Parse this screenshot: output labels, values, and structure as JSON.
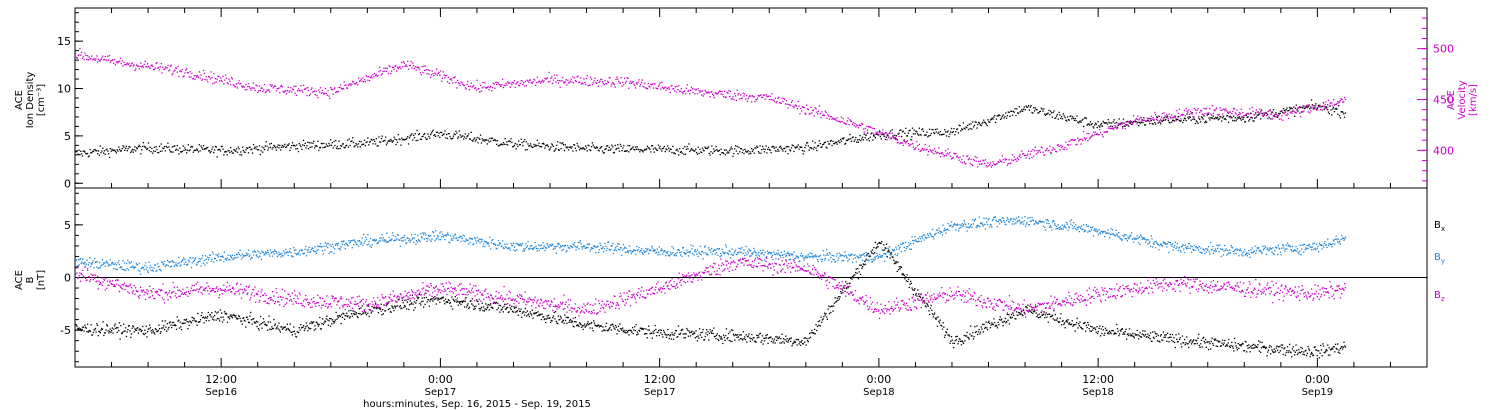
{
  "chart_data": [
    {
      "type": "scatter",
      "title": "",
      "x_axis": {
        "range": [
          "2015-09-16 04:00",
          "2015-09-19 06:00"
        ],
        "tick_labels": [
          {
            "time": "12:00",
            "day": "Sep16"
          },
          {
            "time": "0:00",
            "day": "Sep17"
          },
          {
            "time": "12:00",
            "day": "Sep17"
          },
          {
            "time": "0:00",
            "day": "Sep18"
          },
          {
            "time": "12:00",
            "day": "Sep18"
          },
          {
            "time": "0:00",
            "day": "Sep19"
          }
        ],
        "label": "hours:minutes, Sep. 16, 2015 - Sep. 19, 2015"
      },
      "ylabel_left": [
        "ACE",
        "Ion Density",
        "[cm⁻³]"
      ],
      "ylabel_right": [
        "ACE",
        "Velocity",
        "[km/s]"
      ],
      "yticks_left": [
        "0",
        "5",
        "10",
        "15"
      ],
      "yticks_right": [
        "400",
        "450",
        "500"
      ],
      "ylim_left": [
        -0.5,
        18.5
      ],
      "ylim_right": [
        363,
        540
      ],
      "grid": false,
      "series": [
        {
          "axis": "left",
          "color": "#000000",
          "x": [
            "2015-09-16 04:00",
            "2015-09-16 08:00",
            "2015-09-16 12:00",
            "2015-09-16 16:00",
            "2015-09-16 20:00",
            "2015-09-17 00:00",
            "2015-09-17 04:00",
            "2015-09-17 08:00",
            "2015-09-17 12:00",
            "2015-09-17 16:00",
            "2015-09-17 20:00",
            "2015-09-18 00:00",
            "2015-09-18 04:00",
            "2015-09-18 08:00",
            "2015-09-18 12:00",
            "2015-09-18 16:00",
            "2015-09-18 20:00",
            "2015-09-19 00:00",
            "2015-09-19 01:30"
          ],
          "y": [
            3.2,
            3.8,
            3.5,
            4.0,
            4.3,
            5.3,
            4.2,
            3.7,
            3.6,
            3.5,
            3.8,
            5.2,
            5.5,
            8.0,
            6.2,
            6.8,
            7.0,
            8.2,
            7.5
          ]
        },
        {
          "axis": "right",
          "color": "#cc00cc",
          "x": [
            "2015-09-16 04:00",
            "2015-09-16 06:00",
            "2015-09-16 10:00",
            "2015-09-16 14:00",
            "2015-09-16 18:00",
            "2015-09-16 22:00",
            "2015-09-17 02:00",
            "2015-09-17 06:00",
            "2015-09-17 10:00",
            "2015-09-17 14:00",
            "2015-09-17 18:00",
            "2015-09-17 22:00",
            "2015-09-18 02:00",
            "2015-09-18 06:00",
            "2015-09-18 10:00",
            "2015-09-18 14:00",
            "2015-09-18 18:00",
            "2015-09-18 22:00",
            "2015-09-19 01:30"
          ],
          "y": [
            495,
            488,
            478,
            462,
            458,
            485,
            462,
            470,
            468,
            458,
            452,
            430,
            405,
            386,
            405,
            430,
            440,
            435,
            450
          ]
        }
      ]
    },
    {
      "type": "scatter",
      "title": "",
      "x_axis": {
        "range": [
          "2015-09-16 04:00",
          "2015-09-19 06:00"
        ],
        "tick_labels": [
          {
            "time": "12:00",
            "day": "Sep16"
          },
          {
            "time": "0:00",
            "day": "Sep17"
          },
          {
            "time": "12:00",
            "day": "Sep17"
          },
          {
            "time": "0:00",
            "day": "Sep18"
          },
          {
            "time": "12:00",
            "day": "Sep18"
          },
          {
            "time": "0:00",
            "day": "Sep19"
          }
        ],
        "label": "hours:minutes, Sep. 16, 2015 - Sep. 19, 2015"
      },
      "ylabel_left": [
        "ACE",
        "B",
        "[nT]"
      ],
      "yticks_left": [
        "-5",
        "0",
        "5"
      ],
      "ylim": [
        -8.5,
        8.5
      ],
      "zero_line": 0,
      "grid": false,
      "legend_placement": "right",
      "series": [
        {
          "name": "Bx",
          "legend_main": "B",
          "legend_sub": "x",
          "color": "#000000",
          "x": [
            "2015-09-16 04:00",
            "2015-09-16 08:00",
            "2015-09-16 12:00",
            "2015-09-16 16:00",
            "2015-09-16 20:00",
            "2015-09-17 00:00",
            "2015-09-17 04:00",
            "2015-09-17 08:00",
            "2015-09-17 12:00",
            "2015-09-17 16:00",
            "2015-09-17 20:00",
            "2015-09-18 00:00",
            "2015-09-18 04:00",
            "2015-09-18 08:00",
            "2015-09-18 12:00",
            "2015-09-18 16:00",
            "2015-09-18 20:00",
            "2015-09-19 00:00",
            "2015-09-19 01:30"
          ],
          "y": [
            -4.8,
            -5.0,
            -3.5,
            -5.0,
            -3.0,
            -2.0,
            -3.0,
            -4.5,
            -5.2,
            -5.5,
            -6.0,
            3.5,
            -6.0,
            -3.0,
            -5.0,
            -5.8,
            -6.5,
            -7.0,
            -6.5
          ]
        },
        {
          "name": "By",
          "legend_main": "B",
          "legend_sub": "y",
          "color": "#1f86d9",
          "x": [
            "2015-09-16 04:00",
            "2015-09-16 08:00",
            "2015-09-16 12:00",
            "2015-09-16 16:00",
            "2015-09-16 20:00",
            "2015-09-17 00:00",
            "2015-09-17 04:00",
            "2015-09-17 08:00",
            "2015-09-17 12:00",
            "2015-09-17 16:00",
            "2015-09-17 20:00",
            "2015-09-18 00:00",
            "2015-09-18 04:00",
            "2015-09-18 08:00",
            "2015-09-18 12:00",
            "2015-09-18 16:00",
            "2015-09-18 20:00",
            "2015-09-19 00:00",
            "2015-09-19 01:30"
          ],
          "y": [
            1.5,
            1.0,
            2.0,
            2.5,
            3.5,
            4.0,
            3.0,
            3.0,
            2.5,
            2.5,
            2.0,
            2.0,
            5.0,
            5.5,
            4.5,
            3.0,
            2.5,
            3.0,
            3.8
          ]
        },
        {
          "name": "Bz",
          "legend_main": "B",
          "legend_sub": "z",
          "color": "#cc00cc",
          "x": [
            "2015-09-16 04:00",
            "2015-09-16 08:00",
            "2015-09-16 12:00",
            "2015-09-16 16:00",
            "2015-09-16 20:00",
            "2015-09-17 00:00",
            "2015-09-17 04:00",
            "2015-09-17 08:00",
            "2015-09-17 12:00",
            "2015-09-17 16:00",
            "2015-09-17 20:00",
            "2015-09-18 00:00",
            "2015-09-18 04:00",
            "2015-09-18 08:00",
            "2015-09-18 12:00",
            "2015-09-18 16:00",
            "2015-09-18 20:00",
            "2015-09-19 00:00",
            "2015-09-19 01:30"
          ],
          "y": [
            0.5,
            -1.5,
            -1.0,
            -2.0,
            -2.5,
            -1.0,
            -2.0,
            -3.0,
            -1.0,
            1.5,
            1.0,
            -3.0,
            -1.5,
            -3.0,
            -1.5,
            -0.5,
            -1.0,
            -1.5,
            -1.0
          ]
        }
      ]
    }
  ]
}
